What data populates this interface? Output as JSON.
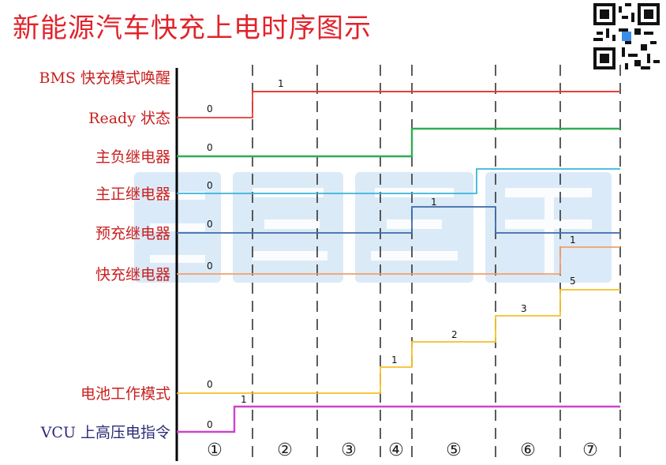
{
  "title": "新能源汽车快充上电时序图示",
  "colors": {
    "title": "#e0242b",
    "label": "#c8201f",
    "label_dark": "#2b2b78",
    "watermark": "#cfe3f5",
    "axis": "#000000",
    "dash": "#333333"
  },
  "signals": [
    {
      "label": "BMS 快充模式唤醒",
      "color": "#000000",
      "label_color": "#c8201f",
      "low": "",
      "high": "1",
      "type": "none"
    },
    {
      "label": "Ready 状态",
      "color": "#e53935",
      "label_color": "#c8201f",
      "low": "0",
      "high": "1",
      "type": "step"
    },
    {
      "label": "主负继电器",
      "color": "#2fae54",
      "label_color": "#c8201f",
      "low": "0",
      "high": "",
      "type": "step"
    },
    {
      "label": "主正继电器",
      "color": "#38b6dc",
      "label_color": "#c8201f",
      "low": "0",
      "high": "",
      "type": "step"
    },
    {
      "label": "预充继电器",
      "color": "#3d6aa8",
      "label_color": "#c8201f",
      "low": "0",
      "high": "1",
      "type": "pulse"
    },
    {
      "label": "快充继电器",
      "color": "#f3a06b",
      "label_color": "#c8201f",
      "low": "0",
      "high": "1",
      "type": "step"
    },
    {
      "label": "电池工作模式",
      "color": "#f4c12a",
      "label_color": "#c8201f",
      "low": "0",
      "steps": [
        "1",
        "2",
        "3",
        "5"
      ],
      "type": "stair"
    },
    {
      "label": "VCU 上高压电指令",
      "color": "#cc44cc",
      "label_color": "#2b2b78",
      "low": "0",
      "high": "1",
      "type": "step"
    }
  ],
  "phases": [
    "①",
    "②",
    "③",
    "④",
    "⑤",
    "⑥",
    "⑦"
  ],
  "watermark": "汽修宝典",
  "qr_icon": "qr-code-icon"
}
